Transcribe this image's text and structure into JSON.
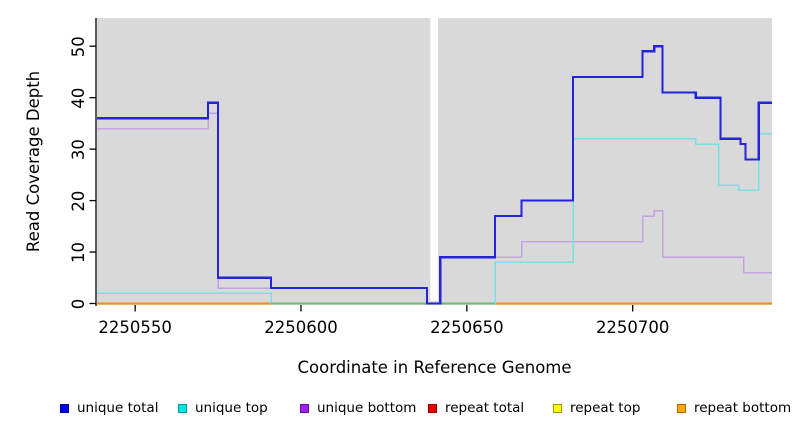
{
  "figure": {
    "background": "#ffffff"
  },
  "chart_data": {
    "type": "line",
    "style": "step",
    "title": "",
    "xlabel": "Coordinate in Reference Genome",
    "ylabel": "Read Coverage Depth",
    "x_ticks": [
      2250550,
      2250600,
      2250650,
      2250700
    ],
    "y_ticks": [
      0,
      10,
      20,
      30,
      40,
      50
    ],
    "x_range": [
      2250538.5,
      2250742
    ],
    "y_range": [
      0,
      55.5
    ],
    "grid": false,
    "legend_position": "bottom",
    "plot_background": "#d9d9d9",
    "axis_color": "#000000",
    "gap_region": {
      "x_start": 2250639,
      "x_end": 2250641.3,
      "color": "#ffffff"
    },
    "series": [
      {
        "name": "repeat total",
        "color": "#e60000",
        "steps": [
          [
            2250538.5,
            0
          ]
        ],
        "end": 2250742
      },
      {
        "name": "repeat top",
        "color": "#ffff00",
        "steps": [
          [
            2250538.5,
            0
          ]
        ],
        "end": 2250742
      },
      {
        "name": "repeat bottom",
        "color": "#ff8c00",
        "steps": [
          [
            2250538.5,
            0
          ]
        ],
        "end": 2250742
      },
      {
        "name": "unique bottom",
        "color": "#c4a1e0",
        "steps": [
          [
            2250538.5,
            34
          ],
          [
            2250572,
            37
          ],
          [
            2250575,
            3
          ],
          [
            2250638,
            0
          ],
          [
            2250642,
            9
          ],
          [
            2250666.5,
            12
          ],
          [
            2250703,
            17
          ],
          [
            2250706.5,
            18
          ],
          [
            2250709,
            9
          ],
          [
            2250733.5,
            6
          ]
        ],
        "end": 2250742
      },
      {
        "name": "unique top",
        "color": "#7ae0e3",
        "steps": [
          [
            2250538.5,
            2
          ],
          [
            2250591,
            0
          ],
          [
            2250658.5,
            8
          ],
          [
            2250682,
            32
          ],
          [
            2250719,
            31
          ],
          [
            2250726,
            23
          ],
          [
            2250732,
            22
          ],
          [
            2250738,
            33
          ]
        ],
        "end": 2250742
      },
      {
        "name": "unique total",
        "color": "#2424db",
        "steps": [
          [
            2250538.5,
            36
          ],
          [
            2250572,
            39
          ],
          [
            2250575,
            5
          ],
          [
            2250591,
            3
          ],
          [
            2250638,
            0
          ],
          [
            2250642,
            9
          ],
          [
            2250658.5,
            17
          ],
          [
            2250666.5,
            20
          ],
          [
            2250682,
            44
          ],
          [
            2250703,
            49
          ],
          [
            2250706.5,
            50
          ],
          [
            2250709,
            41
          ],
          [
            2250719,
            40
          ],
          [
            2250726.5,
            32
          ],
          [
            2250732.5,
            31
          ],
          [
            2250734,
            28
          ],
          [
            2250738,
            39
          ]
        ],
        "end": 2250742
      }
    ],
    "overlay_segments": [
      {
        "name": "zero-line-blend",
        "color": "#72bc72",
        "y": 0,
        "x_start": 2250591,
        "x_end": 2250658.5
      }
    ]
  },
  "legend": {
    "items": [
      {
        "label": "unique total",
        "fill": "#0000ee",
        "border": "#00009a"
      },
      {
        "label": "unique top",
        "fill": "#00e5e5",
        "border": "#009a9a"
      },
      {
        "label": "unique bottom",
        "fill": "#a020f0",
        "border": "#6a0dad"
      },
      {
        "label": "repeat total",
        "fill": "#e60000",
        "border": "#9a0000"
      },
      {
        "label": "repeat top",
        "fill": "#ffff00",
        "border": "#9a9a00"
      },
      {
        "label": "repeat bottom",
        "fill": "#ffa500",
        "border": "#b36b00"
      }
    ]
  }
}
